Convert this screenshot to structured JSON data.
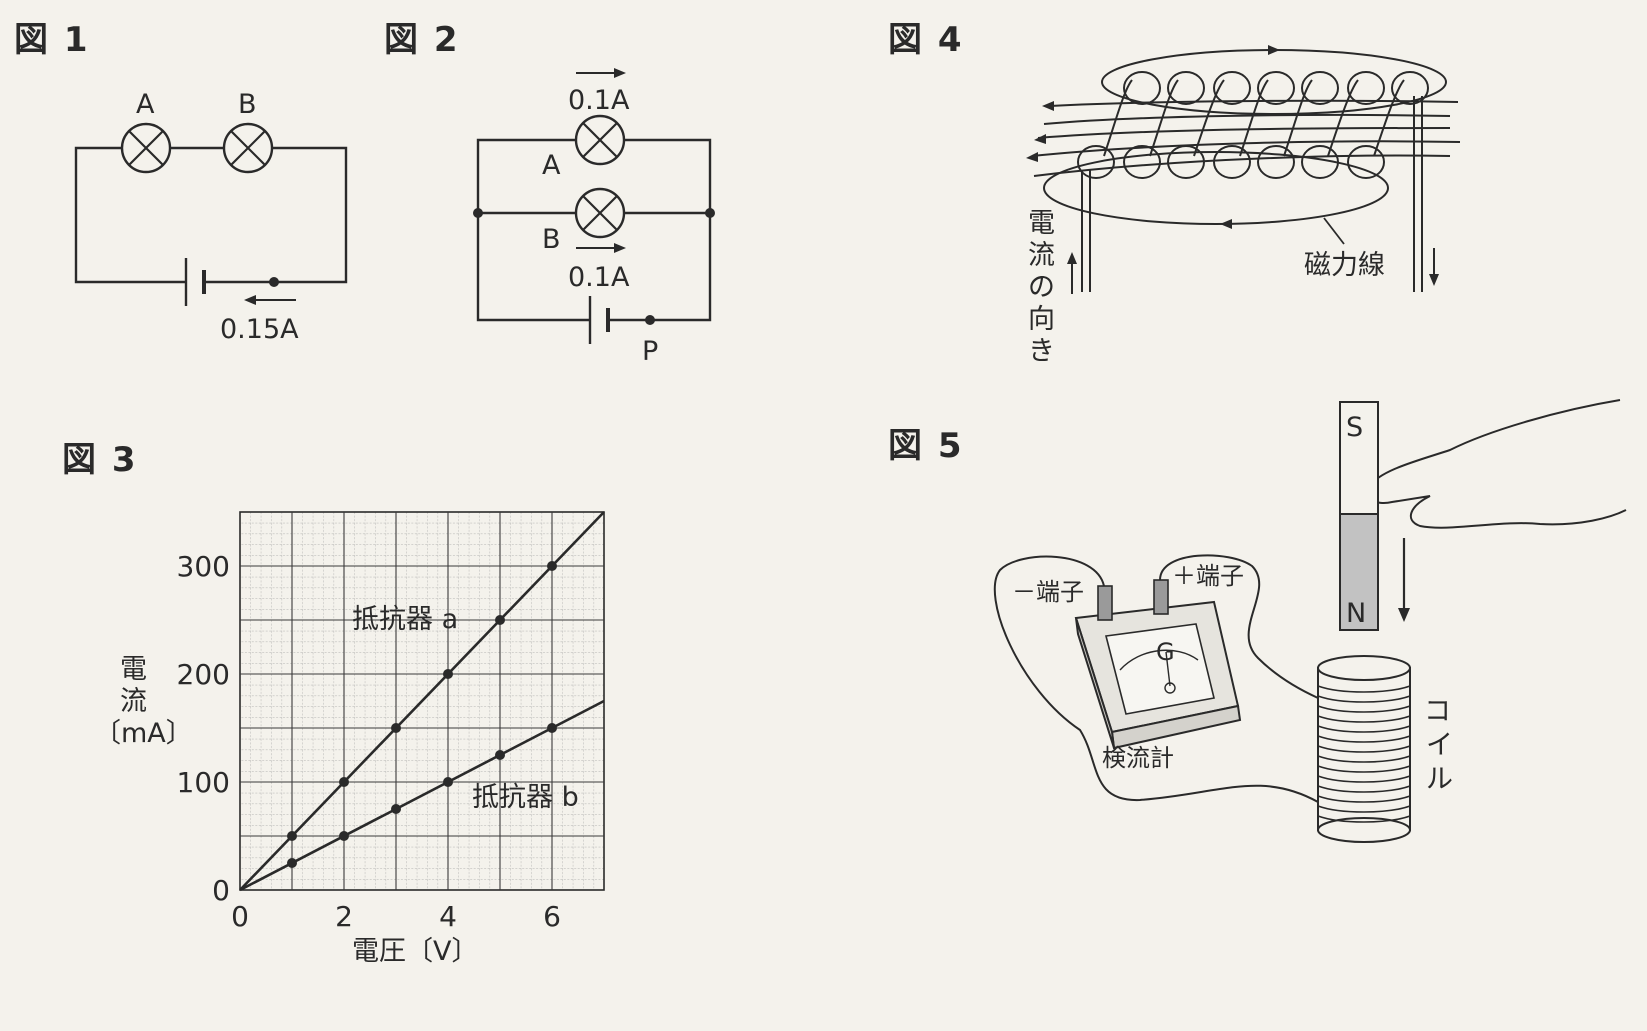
{
  "fig1": {
    "title": "図 1",
    "lamp_a": "A",
    "lamp_b": "B",
    "current": "0.15A"
  },
  "fig2": {
    "title": "図 2",
    "current_top": "0.1A",
    "lamp_a": "A",
    "lamp_b": "B",
    "current_bottom": "0.1A",
    "point": "P"
  },
  "fig3": {
    "title": "図 3",
    "resistor_a": "抵抗器 a",
    "resistor_b": "抵抗器 b",
    "ylabel_1": "電",
    "ylabel_2": "流",
    "ylabel_3": "〔mA〕",
    "xlabel": "電圧〔V〕"
  },
  "fig4": {
    "title": "図 4",
    "current_dir": [
      "電",
      "流",
      "の",
      "向",
      "き"
    ],
    "field_lines": "磁力線"
  },
  "fig5": {
    "title": "図 5",
    "magnet_s": "S",
    "magnet_n": "N",
    "minus_terminal": "－端子",
    "plus_terminal": "＋端子",
    "galvanometer": "検流計",
    "g_letter": "G",
    "coil": [
      "コ",
      "イ",
      "ル"
    ]
  },
  "chart_data": {
    "type": "line",
    "title": "",
    "xlabel": "電圧〔V〕",
    "ylabel": "電流〔mA〕",
    "xlim": [
      0,
      7
    ],
    "ylim": [
      0,
      350
    ],
    "x_ticks": [
      0,
      2,
      4,
      6
    ],
    "y_ticks": [
      0,
      100,
      200,
      300
    ],
    "grid": true,
    "series": [
      {
        "name": "抵抗器 a",
        "x": [
          0,
          1,
          2,
          3,
          4,
          5,
          6
        ],
        "y": [
          0,
          50,
          100,
          150,
          200,
          250,
          300
        ]
      },
      {
        "name": "抵抗器 b",
        "x": [
          0,
          1,
          2,
          3,
          4,
          5,
          6
        ],
        "y": [
          0,
          25,
          50,
          75,
          100,
          125,
          150
        ]
      }
    ]
  }
}
